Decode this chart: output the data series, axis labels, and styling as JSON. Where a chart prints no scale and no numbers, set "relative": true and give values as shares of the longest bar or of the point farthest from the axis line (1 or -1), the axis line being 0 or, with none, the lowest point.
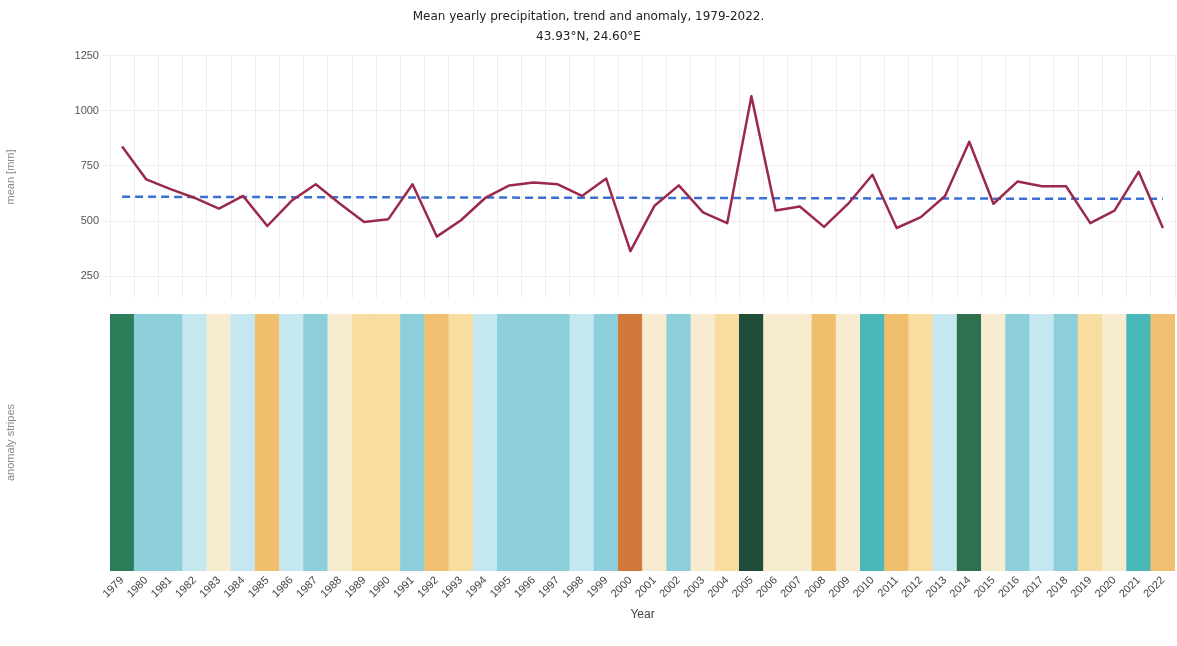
{
  "chart_data": [
    {
      "type": "line",
      "title": "Mean yearly precipitation, trend and anomaly, 1979-2022.",
      "subtitle": "43.93°N, 24.60°E",
      "ylabel": "mean [mm]",
      "categories": [
        "1979",
        "1980",
        "1981",
        "1982",
        "1983",
        "1984",
        "1985",
        "1986",
        "1987",
        "1988",
        "1989",
        "1990",
        "1991",
        "1992",
        "1993",
        "1994",
        "1995",
        "1996",
        "1997",
        "1998",
        "1999",
        "2000",
        "2001",
        "2002",
        "2003",
        "2004",
        "2005",
        "2006",
        "2007",
        "2008",
        "2009",
        "2010",
        "2011",
        "2012",
        "2013",
        "2014",
        "2015",
        "2016",
        "2017",
        "2018",
        "2019",
        "2020",
        "2021",
        "2022"
      ],
      "series": [
        {
          "color": "#9b2a4a",
          "values": [
            838,
            689,
            645,
            605,
            557,
            614,
            478,
            592,
            667,
            579,
            496,
            509,
            667,
            430,
            504,
            605,
            662,
            675,
            667,
            614,
            693,
            364,
            570,
            662,
            540,
            491,
            1066,
            548,
            566,
            474,
            579,
            710,
            469,
            518,
            614,
            860,
            579,
            680,
            658,
            658,
            491,
            548,
            724,
            469
          ]
        },
        {
          "type": "line",
          "color": "#3b6fd4",
          "line_style": "dashed",
          "values": [
            610,
            610,
            610,
            609,
            609,
            609,
            609,
            608,
            608,
            608,
            608,
            608,
            607,
            607,
            607,
            607,
            607,
            606,
            606,
            606,
            606,
            606,
            605,
            605,
            605,
            605,
            604,
            604,
            604,
            604,
            604,
            603,
            603,
            603,
            603,
            603,
            602,
            602,
            602,
            602,
            601,
            601,
            601,
            601
          ]
        }
      ],
      "ylim": [
        150,
        1250
      ],
      "yticks": [
        250,
        500,
        750,
        1000,
        1250
      ],
      "grid": true,
      "legend": false,
      "marker": "none",
      "tick_labels": "y"
    },
    {
      "type": "bar",
      "relative": true,
      "ylabel": "anomaly stripes",
      "xlabel": "Year",
      "categories": [
        "1979",
        "1980",
        "1981",
        "1982",
        "1983",
        "1984",
        "1985",
        "1986",
        "1987",
        "1988",
        "1989",
        "1990",
        "1991",
        "1992",
        "1993",
        "1994",
        "1995",
        "1996",
        "1997",
        "1998",
        "1999",
        "2000",
        "2001",
        "2002",
        "2003",
        "2004",
        "2005",
        "2006",
        "2007",
        "2008",
        "2009",
        "2010",
        "2011",
        "2012",
        "2013",
        "2014",
        "2015",
        "2016",
        "2017",
        "2018",
        "2019",
        "2020",
        "2021",
        "2022"
      ],
      "values": [
        1,
        1,
        1,
        1,
        1,
        1,
        1,
        1,
        1,
        1,
        1,
        1,
        1,
        1,
        1,
        1,
        1,
        1,
        1,
        1,
        1,
        1,
        1,
        1,
        1,
        1,
        1,
        1,
        1,
        1,
        1,
        1,
        1,
        1,
        1,
        1,
        1,
        1,
        1,
        1,
        1,
        1,
        1,
        1
      ],
      "colors": [
        "#2e7d5a",
        "#8ccfdb",
        "#8ccfdb",
        "#c5e8f0",
        "#f7ecd0",
        "#c5e8f0",
        "#f0bf6e",
        "#c5e8f0",
        "#8ccfdb",
        "#f7ecd0",
        "#f8dda0",
        "#f8dda0",
        "#8ccfdb",
        "#f0c070",
        "#f8dda0",
        "#c5e8f0",
        "#8ccfdb",
        "#8ccfdb",
        "#8ccfdb",
        "#c5e8f0",
        "#8ccfdb",
        "#d2783a",
        "#f7ecd0",
        "#8ccfdb",
        "#f7ecd0",
        "#f8dda0",
        "#1f4d3a",
        "#f7ecd0",
        "#f7ecd0",
        "#f0bf6e",
        "#f7ecd0",
        "#4ab8b8",
        "#f0bf6e",
        "#f8dda0",
        "#c5e8f0",
        "#2e7050",
        "#f7ecd0",
        "#8ccfdb",
        "#c5e8f0",
        "#8ccfdb",
        "#f8dda0",
        "#f7ecd0",
        "#4ab8b8",
        "#f0c070"
      ],
      "grid": false,
      "legend": false
    }
  ]
}
